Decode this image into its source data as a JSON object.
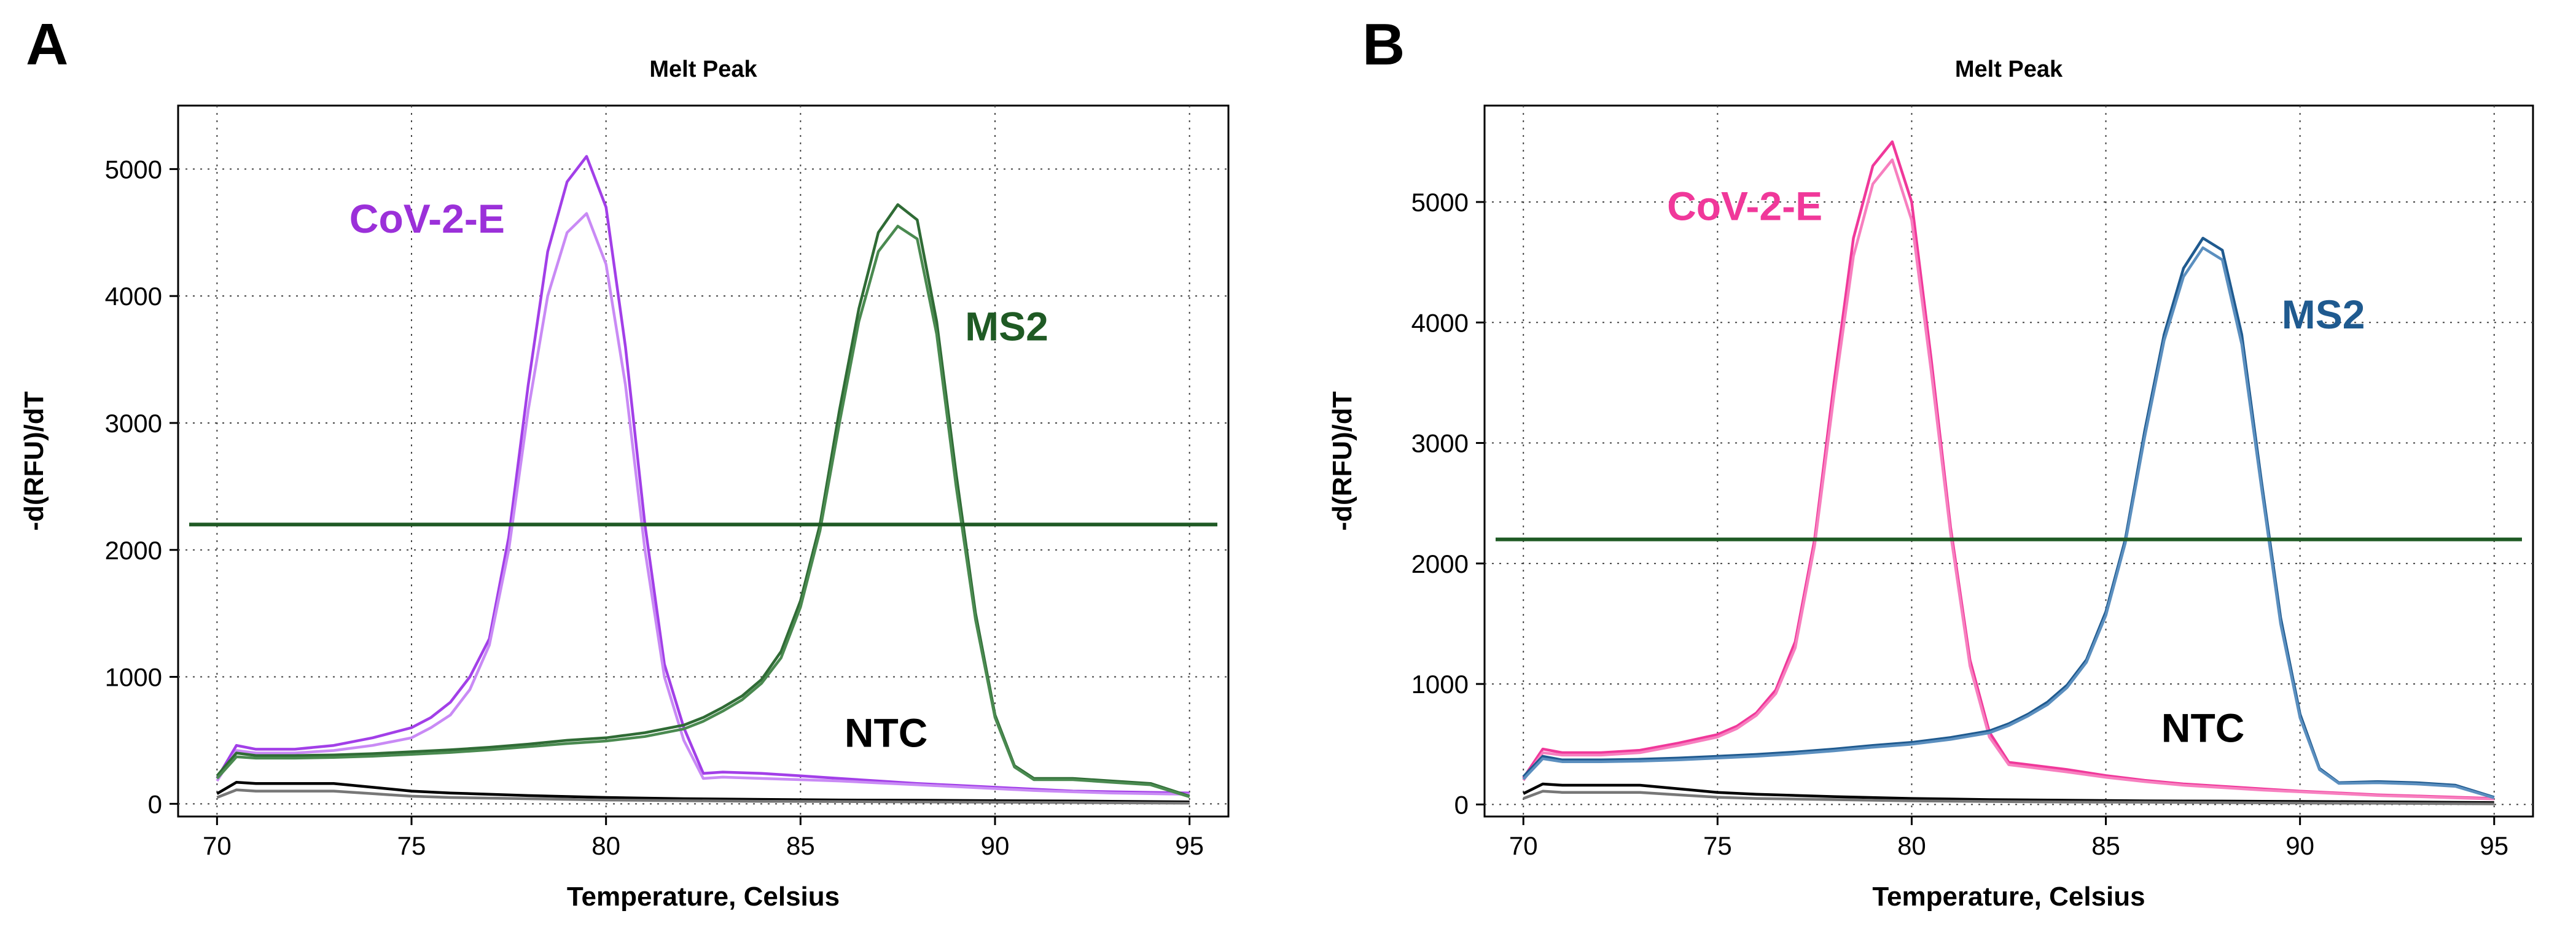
{
  "chart_data": [
    {
      "type": "line",
      "panel_label": "A",
      "title": "Melt Peak",
      "xlabel": "Temperature, Celsius",
      "ylabel": "-d(RFU)/dT",
      "xlim": [
        69,
        96
      ],
      "ylim": [
        -100,
        5500
      ],
      "xticks": [
        70,
        75,
        80,
        85,
        90,
        95
      ],
      "yticks": [
        0,
        1000,
        2000,
        3000,
        4000,
        5000
      ],
      "grid": true,
      "threshold": {
        "value": 2200,
        "color": "#1f5a24"
      },
      "annotations": [
        {
          "text": "CoV-2-E",
          "x": 75.4,
          "y": 4500,
          "color": "#9b30d9"
        },
        {
          "text": "MS2",
          "x": 90.3,
          "y": 3650,
          "color": "#1f5a24"
        },
        {
          "text": "NTC",
          "x": 87.2,
          "y": 450,
          "color": "#000000"
        }
      ],
      "series": [
        {
          "name": "CoV-2-E rep 1",
          "color": "#a23fe8",
          "x": [
            70,
            70.5,
            71,
            72,
            73,
            74,
            75,
            75.5,
            76,
            76.5,
            77,
            77.5,
            78,
            78.5,
            79,
            79.5,
            80,
            80.5,
            81,
            81.5,
            82,
            82.5,
            83,
            84,
            85,
            86,
            87,
            88,
            89,
            90,
            91,
            92,
            93,
            94,
            95
          ],
          "y": [
            200,
            460,
            430,
            430,
            460,
            520,
            600,
            680,
            800,
            1000,
            1300,
            2100,
            3300,
            4350,
            4900,
            5100,
            4700,
            3600,
            2200,
            1100,
            600,
            240,
            250,
            240,
            220,
            200,
            180,
            160,
            145,
            130,
            115,
            100,
            95,
            90,
            85
          ]
        },
        {
          "name": "CoV-2-E rep 2",
          "color": "#c98af5",
          "x": [
            70,
            70.5,
            71,
            72,
            73,
            74,
            75,
            75.5,
            76,
            76.5,
            77,
            77.5,
            78,
            78.5,
            79,
            79.5,
            80,
            80.5,
            81,
            81.5,
            82,
            82.5,
            83,
            84,
            85,
            86,
            87,
            88,
            89,
            90,
            91,
            92,
            93,
            94,
            95
          ],
          "y": [
            180,
            420,
            400,
            400,
            420,
            460,
            520,
            600,
            700,
            900,
            1250,
            2000,
            3100,
            4000,
            4500,
            4650,
            4250,
            3300,
            2000,
            1000,
            500,
            200,
            210,
            200,
            190,
            180,
            165,
            150,
            135,
            120,
            105,
            95,
            85,
            80,
            75
          ]
        },
        {
          "name": "MS2 rep 1",
          "color": "#2f6b35",
          "x": [
            70,
            70.5,
            71,
            72,
            73,
            74,
            75,
            76,
            77,
            78,
            79,
            80,
            81,
            82,
            82.5,
            83,
            83.5,
            84,
            84.5,
            85,
            85.5,
            86,
            86.5,
            87,
            87.5,
            88,
            88.5,
            89,
            89.5,
            90,
            90.5,
            91,
            92,
            93,
            94,
            95
          ],
          "y": [
            220,
            400,
            380,
            380,
            385,
            395,
            410,
            425,
            445,
            470,
            500,
            520,
            560,
            620,
            680,
            760,
            850,
            980,
            1200,
            1600,
            2200,
            3100,
            3900,
            4500,
            4720,
            4600,
            3800,
            2600,
            1500,
            700,
            300,
            200,
            200,
            180,
            160,
            60
          ]
        },
        {
          "name": "MS2 rep 2",
          "color": "#4a8a50",
          "x": [
            70,
            70.5,
            71,
            72,
            73,
            74,
            75,
            76,
            77,
            78,
            79,
            80,
            81,
            82,
            82.5,
            83,
            83.5,
            84,
            84.5,
            85,
            85.5,
            86,
            86.5,
            87,
            87.5,
            88,
            88.5,
            89,
            89.5,
            90,
            90.5,
            91,
            92,
            93,
            94,
            95
          ],
          "y": [
            200,
            370,
            360,
            360,
            365,
            375,
            390,
            405,
            425,
            450,
            475,
            495,
            530,
            590,
            650,
            730,
            820,
            950,
            1150,
            1550,
            2150,
            3000,
            3800,
            4350,
            4550,
            4450,
            3700,
            2500,
            1450,
            680,
            290,
            190,
            190,
            170,
            150,
            55
          ]
        },
        {
          "name": "NTC rep 1",
          "color": "#000000",
          "x": [
            70,
            70.5,
            71,
            72,
            73,
            74,
            75,
            76,
            78,
            80,
            82,
            84,
            86,
            88,
            90,
            92,
            95
          ],
          "y": [
            80,
            170,
            160,
            160,
            160,
            130,
            100,
            85,
            65,
            50,
            40,
            35,
            30,
            28,
            25,
            22,
            15
          ]
        },
        {
          "name": "NTC rep 2",
          "color": "#777777",
          "x": [
            70,
            70.5,
            71,
            72,
            73,
            74,
            75,
            76,
            78,
            80,
            82,
            84,
            86,
            88,
            90,
            92,
            95
          ],
          "y": [
            50,
            110,
            100,
            100,
            100,
            80,
            60,
            50,
            40,
            30,
            25,
            20,
            18,
            15,
            12,
            10,
            5
          ]
        }
      ]
    },
    {
      "type": "line",
      "panel_label": "B",
      "title": "Melt Peak",
      "xlabel": "Temperature, Celsius",
      "ylabel": "-d(RFU)/dT",
      "xlim": [
        69,
        96
      ],
      "ylim": [
        -100,
        5800
      ],
      "xticks": [
        70,
        75,
        80,
        85,
        90,
        95
      ],
      "yticks": [
        0,
        1000,
        2000,
        3000,
        4000,
        5000
      ],
      "grid": true,
      "threshold": {
        "value": 2200,
        "color": "#1f5a24"
      },
      "annotations": [
        {
          "text": "CoV-2-E",
          "x": 75.7,
          "y": 4850,
          "color": "#f0389a"
        },
        {
          "text": "MS2",
          "x": 90.6,
          "y": 3950,
          "color": "#1f5a8f"
        },
        {
          "text": "NTC",
          "x": 87.5,
          "y": 520,
          "color": "#000000"
        }
      ],
      "series": [
        {
          "name": "CoV-2-E rep 1",
          "color": "#f0389a",
          "x": [
            70,
            70.5,
            71,
            72,
            73,
            74,
            75,
            75.5,
            76,
            76.5,
            77,
            77.5,
            78,
            78.5,
            79,
            79.5,
            80,
            80.5,
            81,
            81.5,
            82,
            82.5,
            83,
            84,
            85,
            86,
            87,
            88,
            89,
            90,
            91,
            92,
            93,
            94,
            95
          ],
          "y": [
            220,
            460,
            430,
            430,
            450,
            510,
            580,
            650,
            760,
            950,
            1350,
            2200,
            3500,
            4700,
            5300,
            5500,
            5000,
            3700,
            2300,
            1200,
            600,
            350,
            330,
            290,
            240,
            200,
            170,
            150,
            130,
            110,
            95,
            80,
            70,
            60,
            50
          ]
        },
        {
          "name": "CoV-2-E rep 2",
          "color": "#f77fbf",
          "x": [
            70,
            70.5,
            71,
            72,
            73,
            74,
            75,
            75.5,
            76,
            76.5,
            77,
            77.5,
            78,
            78.5,
            79,
            79.5,
            80,
            80.5,
            81,
            81.5,
            82,
            82.5,
            83,
            84,
            85,
            86,
            87,
            88,
            89,
            90,
            91,
            92,
            93,
            94,
            95
          ],
          "y": [
            200,
            430,
            410,
            410,
            430,
            490,
            560,
            630,
            740,
            920,
            1300,
            2150,
            3400,
            4550,
            5150,
            5350,
            4850,
            3600,
            2250,
            1150,
            560,
            330,
            310,
            270,
            225,
            190,
            160,
            140,
            120,
            105,
            90,
            75,
            65,
            55,
            45
          ]
        },
        {
          "name": "MS2 rep 1",
          "color": "#1f5a8f",
          "x": [
            70,
            70.5,
            71,
            72,
            73,
            74,
            75,
            76,
            77,
            78,
            79,
            80,
            81,
            82,
            82.5,
            83,
            83.5,
            84,
            84.5,
            85,
            85.5,
            86,
            86.5,
            87,
            87.5,
            88,
            88.5,
            89,
            89.5,
            90,
            90.5,
            91,
            92,
            93,
            94,
            95
          ],
          "y": [
            230,
            400,
            370,
            370,
            375,
            385,
            400,
            415,
            435,
            460,
            490,
            515,
            555,
            610,
            670,
            750,
            850,
            990,
            1200,
            1600,
            2200,
            3100,
            3900,
            4450,
            4700,
            4600,
            3900,
            2700,
            1550,
            750,
            300,
            180,
            190,
            180,
            160,
            60
          ]
        },
        {
          "name": "MS2 rep 2",
          "color": "#5b8fbf",
          "x": [
            70,
            70.5,
            71,
            72,
            73,
            74,
            75,
            76,
            77,
            78,
            79,
            80,
            81,
            82,
            82.5,
            83,
            83.5,
            84,
            84.5,
            85,
            85.5,
            86,
            86.5,
            87,
            87.5,
            88,
            88.5,
            89,
            89.5,
            90,
            90.5,
            91,
            92,
            93,
            94,
            95
          ],
          "y": [
            210,
            380,
            355,
            355,
            360,
            370,
            385,
            400,
            420,
            445,
            475,
            500,
            540,
            595,
            655,
            735,
            830,
            970,
            1180,
            1570,
            2170,
            3050,
            3850,
            4380,
            4620,
            4520,
            3820,
            2650,
            1500,
            720,
            290,
            175,
            180,
            170,
            150,
            55
          ]
        },
        {
          "name": "NTC rep 1",
          "color": "#000000",
          "x": [
            70,
            70.5,
            71,
            72,
            73,
            74,
            75,
            76,
            78,
            80,
            82,
            84,
            86,
            88,
            90,
            92,
            95
          ],
          "y": [
            90,
            170,
            160,
            160,
            160,
            130,
            100,
            85,
            65,
            50,
            40,
            35,
            30,
            28,
            25,
            22,
            15
          ]
        },
        {
          "name": "NTC rep 2",
          "color": "#777777",
          "x": [
            70,
            70.5,
            71,
            72,
            73,
            74,
            75,
            76,
            78,
            80,
            82,
            84,
            86,
            88,
            90,
            92,
            95
          ],
          "y": [
            50,
            110,
            100,
            100,
            100,
            80,
            60,
            50,
            40,
            30,
            25,
            20,
            18,
            15,
            12,
            10,
            5
          ]
        }
      ]
    }
  ]
}
